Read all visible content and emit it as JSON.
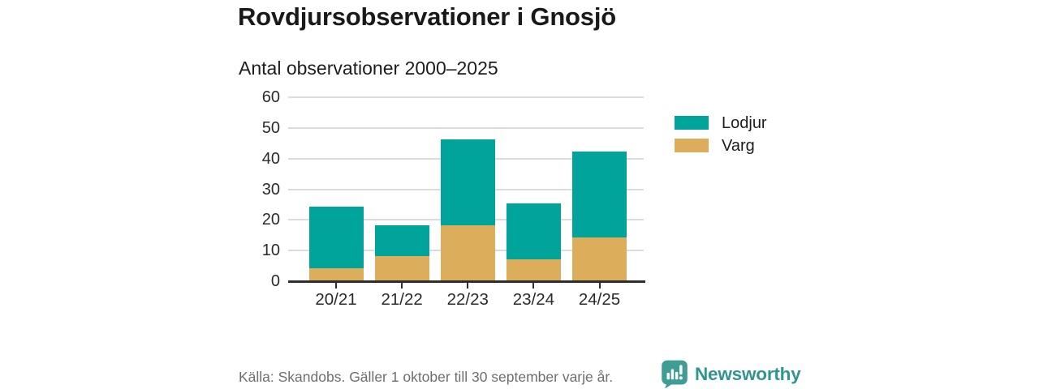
{
  "header": {
    "title": "Rovdjursobservationer i Gnosjö",
    "subtitle": "Antal observationer 2000–2025"
  },
  "chart_data": {
    "type": "bar",
    "stacked": true,
    "categories": [
      "20/21",
      "21/22",
      "22/23",
      "23/24",
      "24/25"
    ],
    "series": [
      {
        "name": "Varg",
        "color": "#dcae5c",
        "values": [
          4,
          8,
          18,
          7,
          14
        ]
      },
      {
        "name": "Lodjur",
        "color": "#00a49b",
        "values": [
          20,
          10,
          28,
          18,
          28
        ]
      }
    ],
    "totals": [
      24,
      18,
      46,
      25,
      42
    ],
    "title": "Rovdjursobservationer i Gnosjö",
    "subtitle": "Antal observationer 2000–2025",
    "xlabel": "",
    "ylabel": "",
    "ylim": [
      0,
      60
    ],
    "yticks": [
      0,
      10,
      20,
      30,
      40,
      50,
      60
    ],
    "grid": true,
    "legend_position": "right",
    "legend_order": [
      "Lodjur",
      "Varg"
    ]
  },
  "footer": {
    "source": "Källa: Skandobs. Gäller 1 oktober till 30 september varje år.",
    "brand": "Newsworthy",
    "brand_color": "#2f968f",
    "brand_icon": "newsworthy-speech-bubble-bar-chart-icon",
    "brand_icon_color": "#3e9d94"
  },
  "colors": {
    "lodjur": "#00a49b",
    "varg": "#dcae5c",
    "gridline": "#dcdcdc",
    "axis": "#2e2e2e",
    "text_dark": "#191919",
    "text_muted": "#6e6e6e"
  }
}
